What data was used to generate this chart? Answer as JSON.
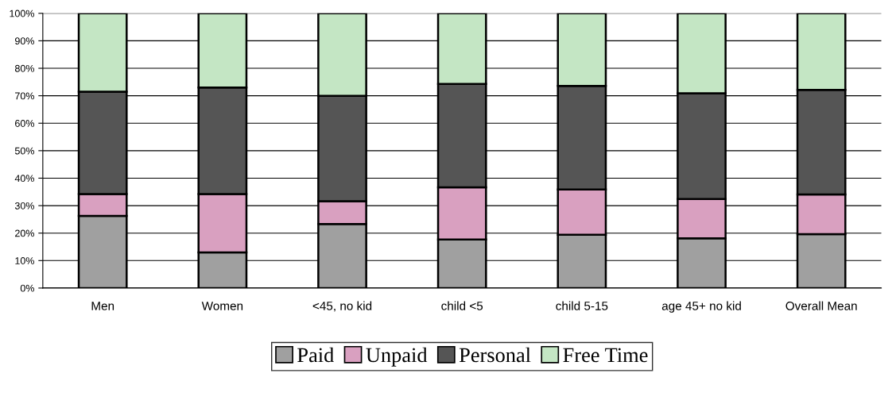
{
  "chart_data": {
    "type": "bar",
    "stacked": true,
    "categories": [
      "Men",
      "Women",
      "<45, no kid",
      "child <5",
      "child 5-15",
      "age 45+ no kid",
      "Overall Mean"
    ],
    "series": [
      {
        "name": "Paid",
        "color": "#a0a0a0",
        "values": [
          26.3,
          13,
          23.3,
          17.7,
          19.4,
          18.1,
          19.6
        ]
      },
      {
        "name": "Unpaid",
        "color": "#d9a0c0",
        "values": [
          7.9,
          21.2,
          8.3,
          19.0,
          16.5,
          14.3,
          14.5
        ]
      },
      {
        "name": "Personal",
        "color": "#555555",
        "values": [
          37.3,
          38.8,
          38.4,
          37.6,
          37.7,
          38.5,
          38.0
        ]
      },
      {
        "name": "Free Time",
        "color": "#c4e6c4",
        "values": [
          28.5,
          27,
          30,
          25.7,
          26.4,
          29.1,
          27.9
        ]
      }
    ],
    "ylim": [
      0,
      100
    ],
    "yticks": [
      {
        "value": 0,
        "label": "0%"
      },
      {
        "value": 10,
        "label": "10%"
      },
      {
        "value": 20,
        "label": "20%"
      },
      {
        "value": 30,
        "label": "30%"
      },
      {
        "value": 40,
        "label": "40%"
      },
      {
        "value": 50,
        "label": "50%"
      },
      {
        "value": 60,
        "label": "60%"
      },
      {
        "value": 70,
        "label": "70%"
      },
      {
        "value": 80,
        "label": "80%"
      },
      {
        "value": 90,
        "label": "90%"
      },
      {
        "value": 100,
        "label": "100%"
      }
    ],
    "grid": "y",
    "legend": "bottom"
  }
}
